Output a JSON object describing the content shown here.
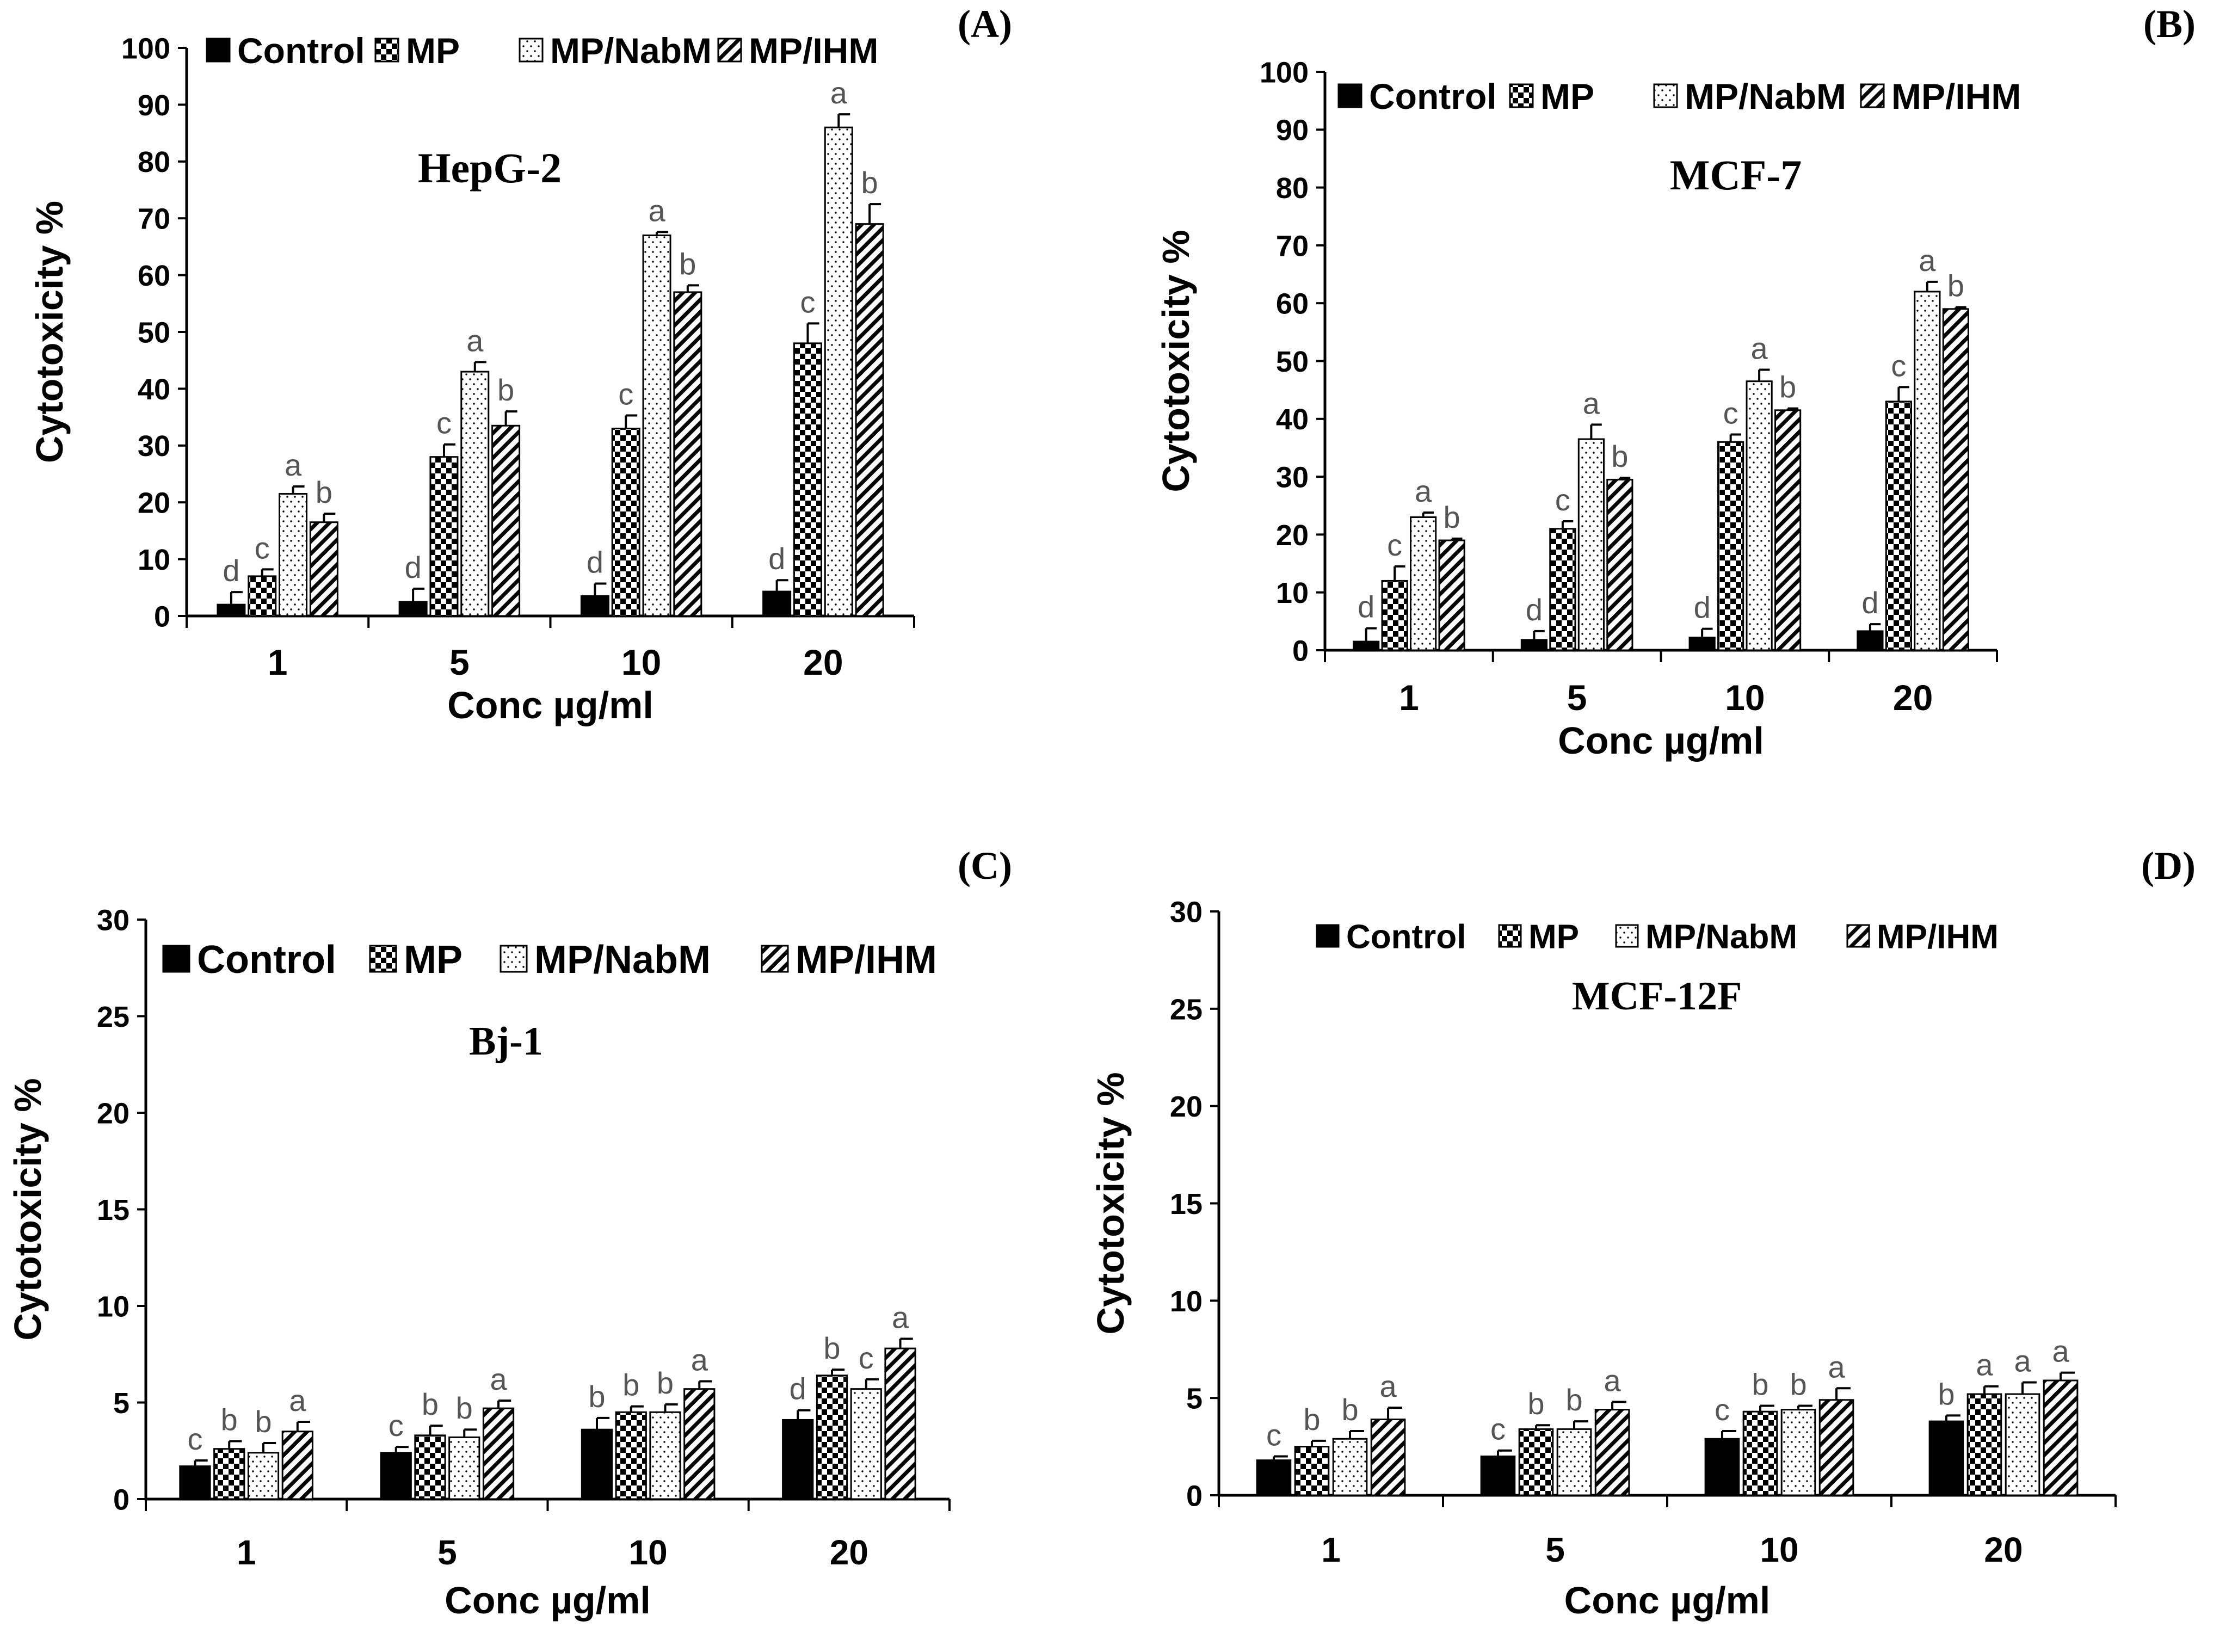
{
  "colors": {
    "axis": "#000000",
    "bar_stroke": "#000000",
    "control": "#000000",
    "fill_white": "#ffffff",
    "letter": "#555555"
  },
  "legend_patterns": [
    "solid-black",
    "checkerboard",
    "dotted",
    "diagonal-stripes"
  ],
  "chart_data": [
    {
      "type": "bar",
      "panel_tag": "(A)",
      "title": "HepG-2",
      "xlabel": "Conc µg/ml",
      "ylabel": "Cytotoxicity %",
      "ylim": [
        0,
        100
      ],
      "yticks": [
        0,
        10,
        20,
        30,
        40,
        50,
        60,
        70,
        80,
        90,
        100
      ],
      "grid": false,
      "legend_position": "top",
      "categories": [
        "1",
        "5",
        "10",
        "20"
      ],
      "series": [
        {
          "name": "Control",
          "values": [
            2,
            2.5,
            3.5,
            4.3
          ],
          "errors": [
            2.2,
            2.3,
            2.2,
            2
          ]
        },
        {
          "name": "MP",
          "values": [
            7,
            28,
            33,
            48
          ],
          "errors": [
            1.2,
            2.2,
            2.3,
            3.5
          ]
        },
        {
          "name": "MP/NabM",
          "values": [
            21.5,
            43,
            67,
            86
          ],
          "errors": [
            1.3,
            1.7,
            0.6,
            2.3
          ]
        },
        {
          "name": "MP/IHM",
          "values": [
            16.5,
            33.5,
            57,
            69
          ],
          "errors": [
            1.5,
            2.5,
            1.2,
            3.5
          ]
        }
      ],
      "significance": [
        [
          "d",
          "c",
          "a",
          "b"
        ],
        [
          "d",
          "c",
          "a",
          "b"
        ],
        [
          "d",
          "c",
          "a",
          "b"
        ],
        [
          "d",
          "c",
          "a",
          "b"
        ]
      ]
    },
    {
      "type": "bar",
      "panel_tag": "(B)",
      "title": "MCF-7",
      "xlabel": "Conc µg/ml",
      "ylabel": "Cytotoxicity %",
      "ylim": [
        0,
        100
      ],
      "yticks": [
        0,
        10,
        20,
        30,
        40,
        50,
        60,
        70,
        80,
        90,
        100
      ],
      "grid": false,
      "legend_position": "top",
      "categories": [
        "1",
        "5",
        "10",
        "20"
      ],
      "series": [
        {
          "name": "Control",
          "values": [
            1.5,
            1.8,
            2.2,
            3.3
          ],
          "errors": [
            2.3,
            1.5,
            1.5,
            1.2
          ]
        },
        {
          "name": "MP",
          "values": [
            12,
            21,
            36,
            43
          ],
          "errors": [
            2.5,
            1.3,
            1.3,
            2.5
          ]
        },
        {
          "name": "MP/NabM",
          "values": [
            23,
            36.5,
            46.5,
            62
          ],
          "errors": [
            0.8,
            2.5,
            2,
            1.7
          ]
        },
        {
          "name": "MP/IHM",
          "values": [
            19,
            29.5,
            41.5,
            59
          ],
          "errors": [
            0.3,
            0.3,
            0.3,
            0.3
          ]
        }
      ],
      "significance": [
        [
          "d",
          "c",
          "a",
          "b"
        ],
        [
          "d",
          "c",
          "a",
          "b"
        ],
        [
          "d",
          "c",
          "a",
          "b"
        ],
        [
          "d",
          "c",
          "a",
          "b"
        ]
      ]
    },
    {
      "type": "bar",
      "panel_tag": "(C)",
      "title": "Bj-1",
      "xlabel": "Conc µg/ml",
      "ylabel": "Cytotoxicity %",
      "ylim": [
        0,
        30
      ],
      "yticks": [
        0,
        5,
        10,
        15,
        20,
        25,
        30
      ],
      "grid": false,
      "legend_position": "top",
      "categories": [
        "1",
        "5",
        "10",
        "20"
      ],
      "series": [
        {
          "name": "Control",
          "values": [
            1.7,
            2.4,
            3.6,
            4.1
          ],
          "errors": [
            0.3,
            0.3,
            0.6,
            0.5
          ]
        },
        {
          "name": "MP",
          "values": [
            2.6,
            3.3,
            4.5,
            6.4
          ],
          "errors": [
            0.4,
            0.5,
            0.3,
            0.3
          ]
        },
        {
          "name": "MP/NabM",
          "values": [
            2.4,
            3.2,
            4.5,
            5.7
          ],
          "errors": [
            0.5,
            0.4,
            0.4,
            0.5
          ]
        },
        {
          "name": "MP/IHM",
          "values": [
            3.5,
            4.7,
            5.7,
            7.8
          ],
          "errors": [
            0.5,
            0.4,
            0.4,
            0.5
          ]
        }
      ],
      "significance": [
        [
          "c",
          "b",
          "b",
          "a"
        ],
        [
          "c",
          "b",
          "b",
          "a"
        ],
        [
          "b",
          "b",
          "b",
          "a"
        ],
        [
          "d",
          "b",
          "c",
          "a"
        ]
      ]
    },
    {
      "type": "bar",
      "panel_tag": "(D)",
      "title": "MCF-12F",
      "xlabel": "Conc µg/ml",
      "ylabel": "Cytotoxicity %",
      "ylim": [
        0,
        30
      ],
      "yticks": [
        0,
        5,
        10,
        15,
        20,
        25,
        30
      ],
      "grid": false,
      "legend_position": "top",
      "categories": [
        "1",
        "5",
        "10",
        "20"
      ],
      "series": [
        {
          "name": "Control",
          "values": [
            1.8,
            2,
            2.9,
            3.8
          ],
          "errors": [
            0.2,
            0.3,
            0.4,
            0.3
          ]
        },
        {
          "name": "MP",
          "values": [
            2.5,
            3.4,
            4.3,
            5.2
          ],
          "errors": [
            0.3,
            0.2,
            0.3,
            0.4
          ]
        },
        {
          "name": "MP/NabM",
          "values": [
            2.9,
            3.4,
            4.4,
            5.2
          ],
          "errors": [
            0.4,
            0.4,
            0.2,
            0.6
          ]
        },
        {
          "name": "MP/IHM",
          "values": [
            3.9,
            4.4,
            4.9,
            5.9
          ],
          "errors": [
            0.6,
            0.4,
            0.6,
            0.4
          ]
        }
      ],
      "significance": [
        [
          "c",
          "b",
          "b",
          "a"
        ],
        [
          "c",
          "b",
          "b",
          "a"
        ],
        [
          "c",
          "b",
          "b",
          "a"
        ],
        [
          "b",
          "a",
          "a",
          "a"
        ]
      ]
    }
  ]
}
